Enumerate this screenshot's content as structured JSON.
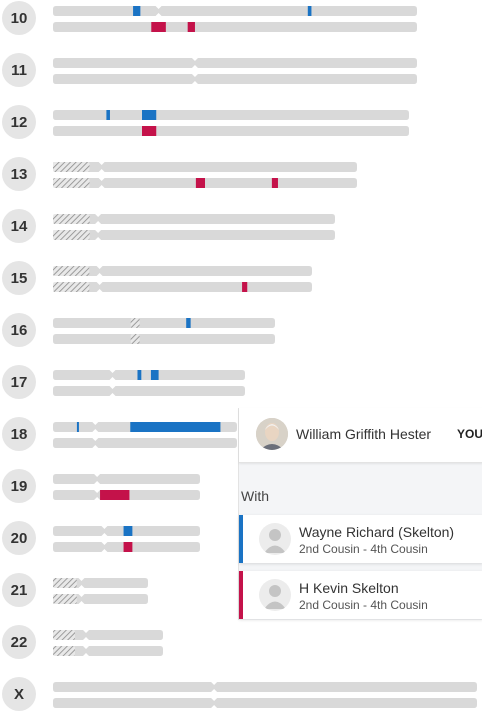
{
  "colors": {
    "chromosome": "#d9d9d9",
    "match_blue": "#1a73c4",
    "match_red": "#c4124a",
    "hatch": "#8a8a8a"
  },
  "chromosomes": [
    {
      "label": "10",
      "top": {
        "segments": [
          {
            "color": "blue",
            "start": 0.22,
            "end": 0.24
          },
          {
            "color": "blue",
            "start": 0.7,
            "end": 0.71
          }
        ]
      },
      "bottom": {
        "segments": [
          {
            "color": "red",
            "start": 0.27,
            "end": 0.31
          },
          {
            "color": "red",
            "start": 0.37,
            "end": 0.39
          }
        ]
      }
    },
    {
      "label": "11",
      "top": {
        "segments": []
      },
      "bottom": {
        "segments": []
      }
    },
    {
      "label": "12",
      "top": {
        "segments": [
          {
            "color": "blue",
            "start": 0.15,
            "end": 0.16
          },
          {
            "color": "blue",
            "start": 0.25,
            "end": 0.29
          }
        ]
      },
      "bottom": {
        "segments": [
          {
            "color": "red",
            "start": 0.25,
            "end": 0.29
          }
        ]
      }
    },
    {
      "label": "13",
      "top": {
        "segments": []
      },
      "bottom": {
        "segments": [
          {
            "color": "red",
            "start": 0.47,
            "end": 0.5
          },
          {
            "color": "red",
            "start": 0.72,
            "end": 0.74
          }
        ]
      }
    },
    {
      "label": "14",
      "top": {
        "segments": []
      },
      "bottom": {
        "segments": []
      }
    },
    {
      "label": "15",
      "top": {
        "segments": []
      },
      "bottom": {
        "segments": [
          {
            "color": "red",
            "start": 0.73,
            "end": 0.75
          }
        ]
      }
    },
    {
      "label": "16",
      "top": {
        "segments": [
          {
            "color": "blue",
            "start": 0.6,
            "end": 0.62
          }
        ]
      },
      "bottom": {
        "segments": []
      }
    },
    {
      "label": "17",
      "top": {
        "segments": [
          {
            "color": "blue",
            "start": 0.44,
            "end": 0.46
          },
          {
            "color": "blue",
            "start": 0.51,
            "end": 0.55
          }
        ]
      },
      "bottom": {
        "segments": []
      }
    },
    {
      "label": "18",
      "top": {
        "segments": [
          {
            "color": "blue",
            "start": 0.13,
            "end": 0.14
          },
          {
            "color": "blue",
            "start": 0.42,
            "end": 0.91
          }
        ]
      },
      "bottom": {
        "segments": []
      }
    },
    {
      "label": "19",
      "top": {
        "segments": []
      },
      "bottom": {
        "segments": [
          {
            "color": "red",
            "start": 0.32,
            "end": 0.52
          }
        ]
      }
    },
    {
      "label": "20",
      "top": {
        "segments": [
          {
            "color": "blue",
            "start": 0.48,
            "end": 0.54
          }
        ]
      },
      "bottom": {
        "segments": [
          {
            "color": "red",
            "start": 0.48,
            "end": 0.54
          }
        ]
      }
    },
    {
      "label": "21",
      "top": {
        "segments": []
      },
      "bottom": {
        "segments": []
      }
    },
    {
      "label": "22",
      "top": {
        "segments": []
      },
      "bottom": {
        "segments": []
      }
    },
    {
      "label": "X",
      "top": {
        "segments": []
      },
      "bottom": {
        "segments": []
      }
    }
  ],
  "panel": {
    "you_name": "William Griffith Hester",
    "you_badge": "YOU",
    "with_label": "With",
    "matches": [
      {
        "name": "Wayne Richard (Skelton)",
        "relationship": "2nd Cousin - 4th Cousin",
        "color": "#1a73c4"
      },
      {
        "name": "H Kevin Skelton",
        "relationship": "2nd Cousin - 4th Cousin",
        "color": "#c4124a"
      }
    ]
  }
}
